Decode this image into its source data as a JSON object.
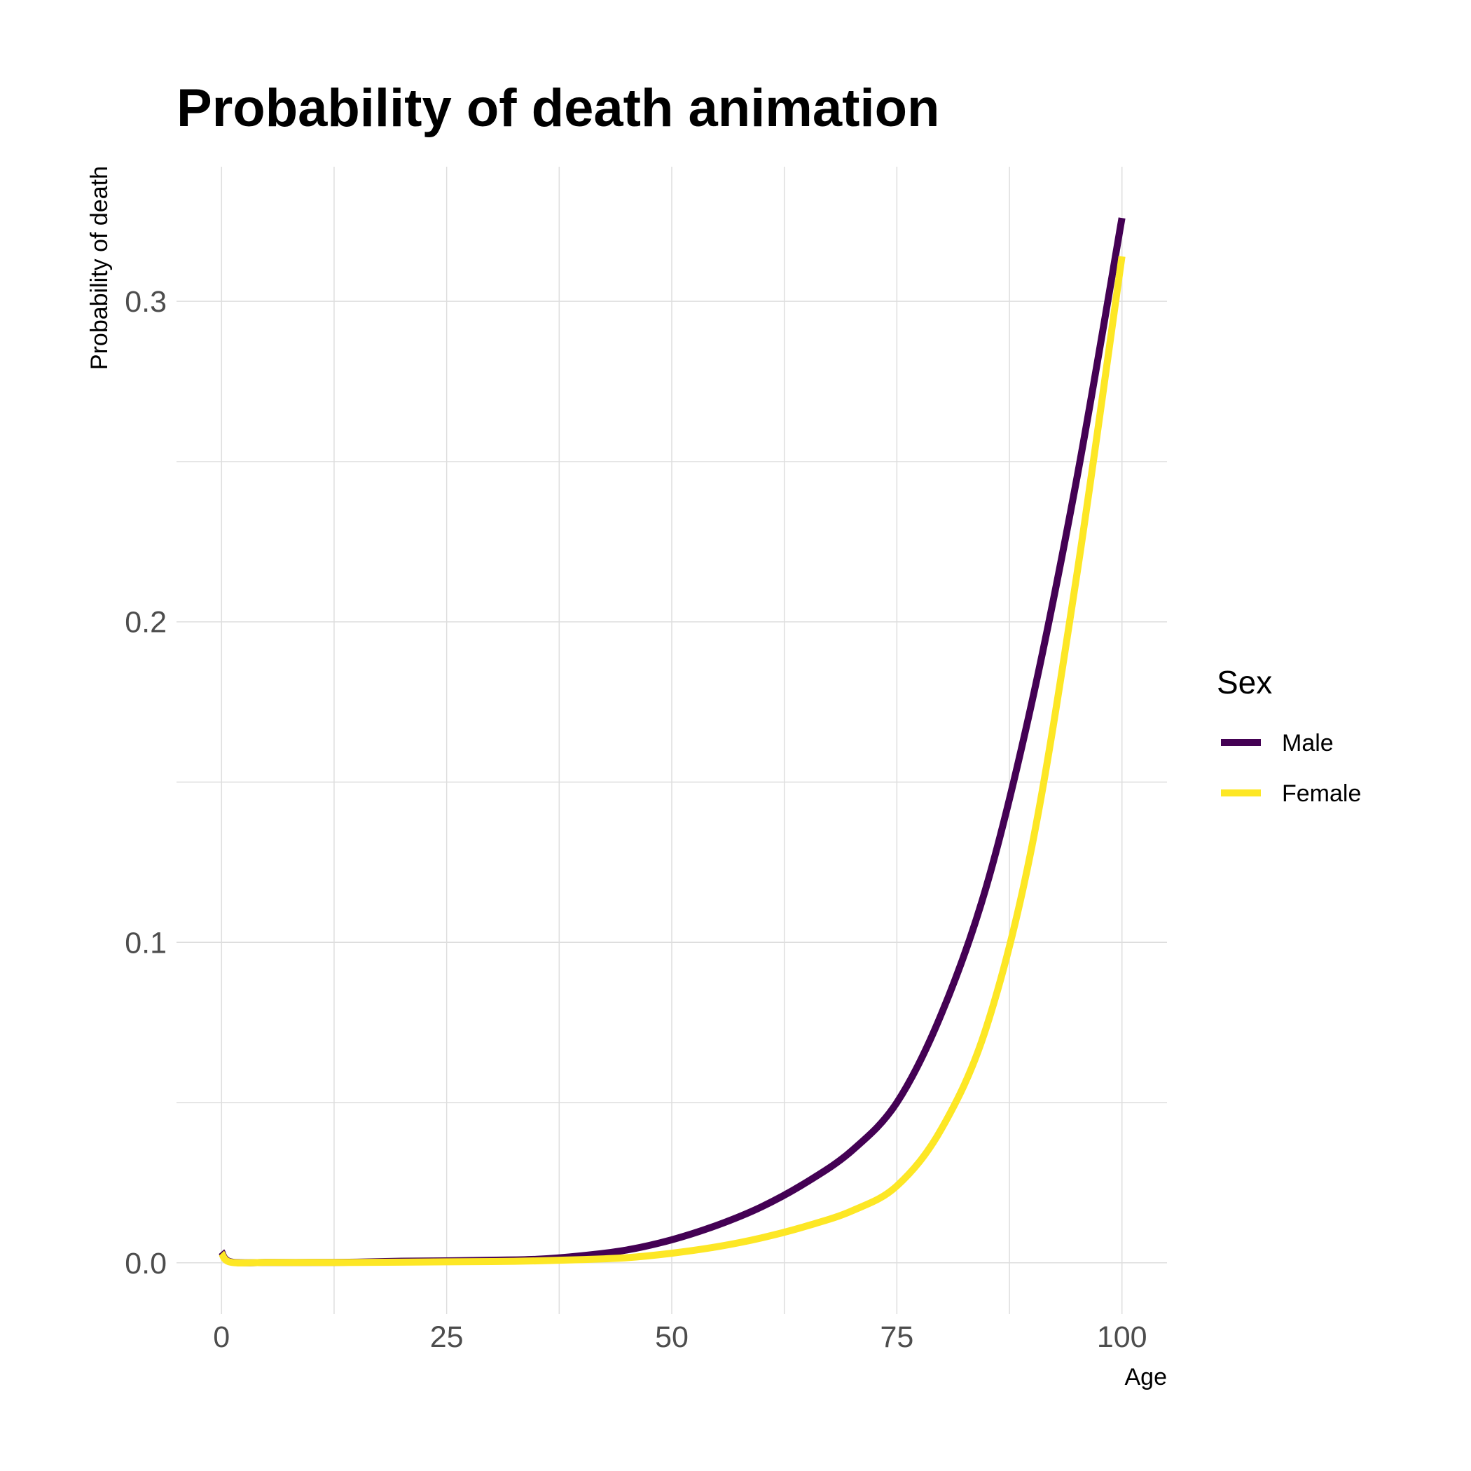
{
  "chart_data": {
    "type": "line",
    "title": "Probability of death animation",
    "xlabel": "Age",
    "ylabel": "Probability of death",
    "xlim": [
      -5,
      105
    ],
    "ylim": [
      -0.016,
      0.342
    ],
    "x_ticks": [
      0,
      25,
      50,
      75,
      100
    ],
    "x_tick_labels": [
      "0",
      "25",
      "50",
      "75",
      "100"
    ],
    "y_ticks": [
      0.0,
      0.1,
      0.2,
      0.3
    ],
    "y_tick_labels": [
      "0.0",
      "0.1",
      "0.2",
      "0.3"
    ],
    "grid": true,
    "legend": {
      "title": "Sex",
      "position": "right"
    },
    "series": [
      {
        "name": "Male",
        "color": "#440154",
        "x": [
          0,
          1,
          5,
          10,
          15,
          20,
          25,
          30,
          35,
          40,
          45,
          50,
          55,
          60,
          65,
          70,
          75,
          80,
          85,
          90,
          95,
          100
        ],
        "y": [
          0.0035,
          0.0003,
          0.0001,
          0.0001,
          0.0002,
          0.0005,
          0.0006,
          0.0008,
          0.0011,
          0.0022,
          0.004,
          0.0072,
          0.0117,
          0.0175,
          0.0252,
          0.035,
          0.05,
          0.078,
          0.118,
          0.175,
          0.245,
          0.326
        ]
      },
      {
        "name": "Female",
        "color": "#fde725",
        "x": [
          0,
          1,
          5,
          10,
          15,
          20,
          25,
          30,
          35,
          40,
          45,
          50,
          55,
          60,
          65,
          70,
          75,
          80,
          85,
          90,
          95,
          100
        ],
        "y": [
          0.003,
          0.0002,
          0.0001,
          0.0001,
          0.0001,
          0.0002,
          0.0003,
          0.0004,
          0.0006,
          0.001,
          0.0016,
          0.003,
          0.005,
          0.0078,
          0.0115,
          0.0162,
          0.024,
          0.042,
          0.074,
          0.13,
          0.215,
          0.314
        ]
      }
    ]
  }
}
